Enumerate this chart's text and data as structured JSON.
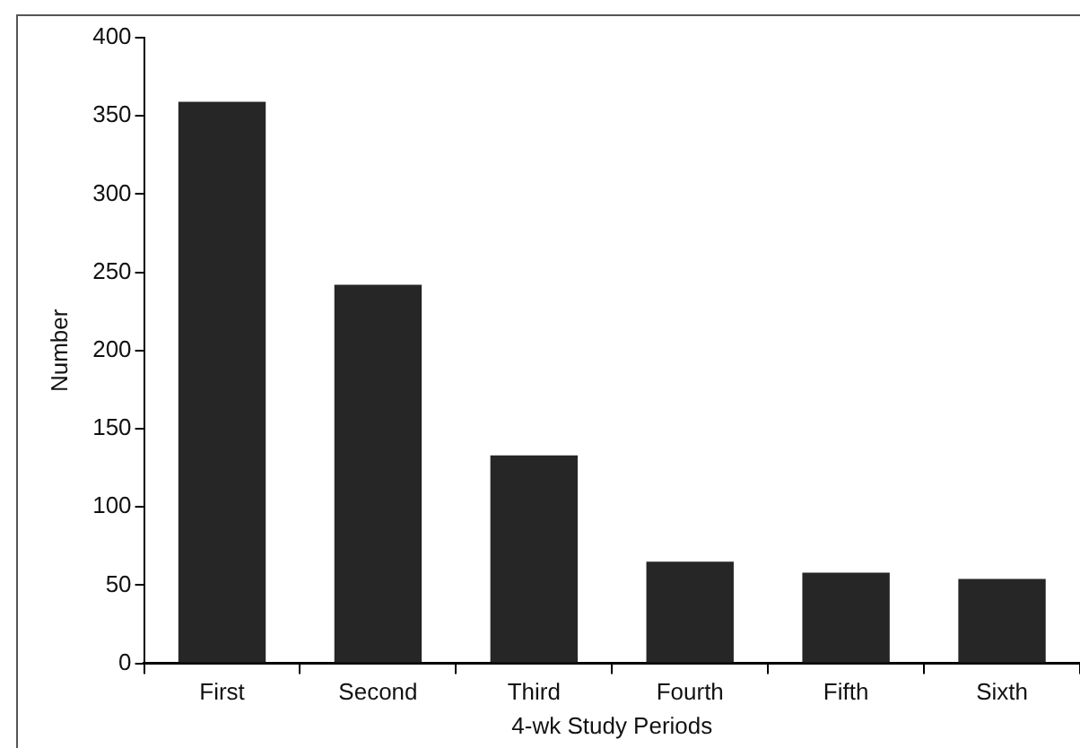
{
  "chart_data": {
    "type": "bar",
    "xlabel": "4-wk Study Periods",
    "ylabel": "Number",
    "categories": [
      "First",
      "Second",
      "Third",
      "Fourth",
      "Fifth",
      "Sixth"
    ],
    "values": [
      359,
      242,
      133,
      65,
      58,
      54
    ],
    "color": "#262626",
    "ylim": [
      0,
      400
    ],
    "yticks": [
      0,
      50,
      100,
      150,
      200,
      250,
      300,
      350,
      400
    ],
    "grid": false,
    "legend": false
  }
}
